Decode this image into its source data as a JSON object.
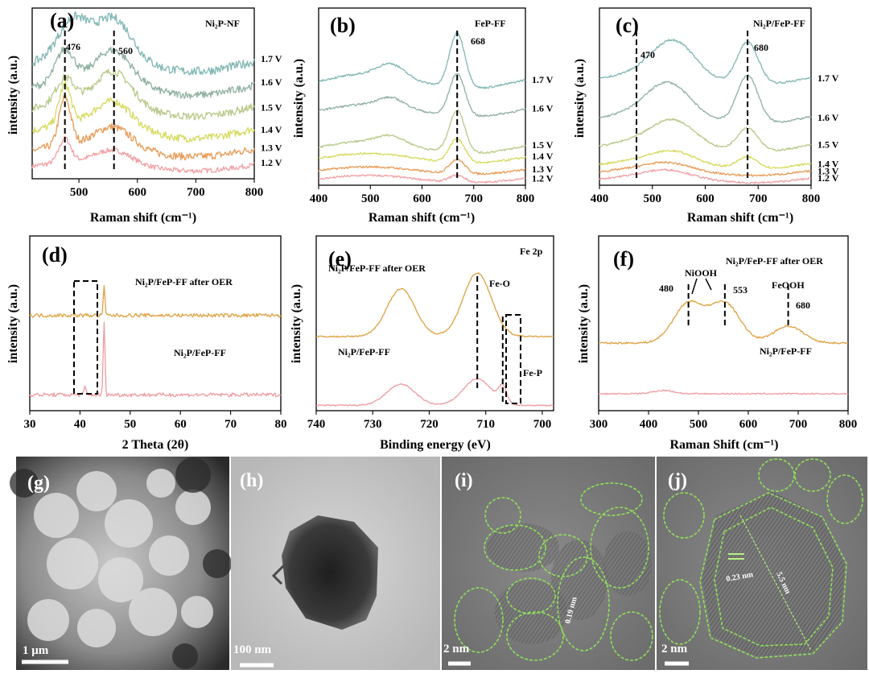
{
  "colors": {
    "v12": "#f2a0a4",
    "v13": "#e89a55",
    "v14": "#d6da5e",
    "v15": "#b8c98a",
    "v16": "#8fb0a0",
    "v17": "#7fb6b3",
    "after": "#e0a040",
    "before": "#f09aa0"
  },
  "chart_data": [
    {
      "panel": "(a)",
      "type": "line",
      "title": "Ni₂P-NF",
      "xlabel": "Raman shift (cm⁻¹)",
      "ylabel": "intensity (a.u.)",
      "xlim": [
        420,
        800
      ],
      "xticks": [
        500,
        600,
        700,
        800
      ],
      "peak_markers": [
        {
          "x": 476,
          "label": "476"
        },
        {
          "x": 560,
          "label": "560"
        }
      ],
      "series": [
        {
          "name": "1.2 V",
          "offset": 0,
          "amp": 0.3,
          "noise": 0.4,
          "peaks": [
            [
              476,
              1.5,
              10
            ],
            [
              560,
              0.8,
              30
            ]
          ]
        },
        {
          "name": "1.3 V",
          "offset": 1,
          "amp": 0.4,
          "noise": 0.6,
          "peaks": [
            [
              476,
              3.0,
              10
            ],
            [
              560,
              1.2,
              30
            ]
          ]
        },
        {
          "name": "1.4 V",
          "offset": 2.25,
          "amp": 0.5,
          "noise": 0.6,
          "peaks": [
            [
              476,
              2.5,
              10
            ],
            [
              560,
              1.5,
              30
            ]
          ]
        },
        {
          "name": "1.5 V",
          "offset": 3.65,
          "amp": 0.5,
          "noise": 0.6,
          "peaks": [
            [
              476,
              1.5,
              15
            ],
            [
              560,
              2.0,
              30
            ]
          ]
        },
        {
          "name": "1.6 V",
          "offset": 5.0,
          "amp": 0.5,
          "noise": 0.6,
          "peaks": [
            [
              476,
              2.0,
              15
            ],
            [
              560,
              2.0,
              30
            ]
          ]
        },
        {
          "name": "1.7 V",
          "offset": 6.5,
          "amp": 0.5,
          "noise": 0.7,
          "peaks": [
            [
              490,
              2.3,
              25
            ],
            [
              560,
              2.5,
              30
            ]
          ]
        }
      ]
    },
    {
      "panel": "(b)",
      "type": "line",
      "title": "FeP-FF",
      "xlabel": "Raman shift (cm⁻¹)",
      "ylabel": "intensity (a.u.)",
      "xlim": [
        400,
        800
      ],
      "xticks": [
        400,
        500,
        600,
        700,
        800
      ],
      "peak_markers": [
        {
          "x": 668,
          "label": "668"
        }
      ],
      "series": [
        {
          "name": "1.2 V",
          "offset": 0,
          "amp": 0.3,
          "noise": 0.2,
          "peaks": [
            [
              668,
              0.6,
              15
            ]
          ]
        },
        {
          "name": "1.3 V",
          "offset": 0.7,
          "amp": 0.3,
          "noise": 0.2,
          "peaks": [
            [
              668,
              1.2,
              15
            ]
          ]
        },
        {
          "name": "1.4 V",
          "offset": 1.7,
          "amp": 0.4,
          "noise": 0.2,
          "peaks": [
            [
              668,
              2.0,
              15
            ]
          ]
        },
        {
          "name": "1.5 V",
          "offset": 2.6,
          "amp": 0.5,
          "noise": 0.2,
          "peaks": [
            [
              668,
              3.5,
              15
            ],
            [
              540,
              0.6,
              25
            ]
          ]
        },
        {
          "name": "1.6 V",
          "offset": 5.6,
          "amp": 0.5,
          "noise": 0.2,
          "peaks": [
            [
              668,
              3.5,
              15
            ],
            [
              540,
              0.7,
              25
            ]
          ]
        },
        {
          "name": "1.7 V",
          "offset": 8.0,
          "amp": 0.6,
          "noise": 0.2,
          "peaks": [
            [
              668,
              4.5,
              15
            ],
            [
              540,
              1.0,
              25
            ]
          ]
        }
      ]
    },
    {
      "panel": "(c)",
      "type": "line",
      "title": "Ni₂P/FeP-FF",
      "xlabel": "Raman shift (cm⁻¹)",
      "ylabel": "intensity (a.u.)",
      "xlim": [
        400,
        800
      ],
      "xticks": [
        400,
        500,
        600,
        700,
        800
      ],
      "peak_markers": [
        {
          "x": 470,
          "label": "470"
        },
        {
          "x": 680,
          "label": "680"
        }
      ],
      "series": [
        {
          "name": "1.2 V",
          "offset": 0,
          "amp": 0.3,
          "noise": 0.2,
          "peaks": [
            [
              530,
              0.5,
              40
            ]
          ]
        },
        {
          "name": "1.3 V",
          "offset": 0.6,
          "amp": 0.3,
          "noise": 0.2,
          "peaks": [
            [
              530,
              0.5,
              40
            ]
          ]
        },
        {
          "name": "1.4 V",
          "offset": 1.2,
          "amp": 0.4,
          "noise": 0.2,
          "peaks": [
            [
              540,
              0.8,
              40
            ],
            [
              680,
              1.0,
              20
            ]
          ]
        },
        {
          "name": "1.5 V",
          "offset": 2.7,
          "amp": 0.5,
          "noise": 0.2,
          "peaks": [
            [
              540,
              1.8,
              40
            ],
            [
              680,
              2.0,
              20
            ]
          ]
        },
        {
          "name": "1.6 V",
          "offset": 5.0,
          "amp": 0.5,
          "noise": 0.2,
          "peaks": [
            [
              530,
              2.5,
              40
            ],
            [
              680,
              4.0,
              20
            ]
          ]
        },
        {
          "name": "1.7 V",
          "offset": 8.2,
          "amp": 0.5,
          "noise": 0.2,
          "peaks": [
            [
              540,
              2.8,
              40
            ],
            [
              680,
              3.5,
              20
            ]
          ]
        }
      ]
    },
    {
      "panel": "(d)",
      "type": "line",
      "xlabel": "2 Theta (2θ)",
      "ylabel": "intensity (a.u.)",
      "xlim": [
        30,
        80
      ],
      "xticks": [
        30,
        40,
        50,
        60,
        70,
        80
      ],
      "series": [
        {
          "name": "Ni₂P/FeP-FF",
          "offset": 0,
          "amp": 0.0,
          "noise": 0.6,
          "peaks": [
            [
              44.8,
              9.0,
              0.18
            ],
            [
              41.0,
              1.0,
              0.2
            ]
          ]
        },
        {
          "name": "Ni₂P/FeP-FF after OER",
          "offset": 10.0,
          "amp": 0.0,
          "noise": 0.6,
          "peaks": [
            [
              44.8,
              3.5,
              0.18
            ]
          ]
        }
      ]
    },
    {
      "panel": "(e)",
      "type": "line",
      "title": "Fe 2p",
      "xlabel": "Binding energy (eV)",
      "ylabel": "intensity (a.u.)",
      "xlim": [
        740,
        698
      ],
      "xticks": [
        740,
        730,
        720,
        710,
        700
      ],
      "peak_markers": [
        {
          "x": 711.5,
          "label": "Fe-O"
        },
        {
          "x": 707,
          "label": "Fe-P"
        }
      ],
      "series": [
        {
          "name": "Ni₂P/FeP-FF",
          "offset": 0,
          "amp": 0.0,
          "noise": 0.15,
          "peaks": [
            [
              725,
              2.0,
              2.5
            ],
            [
              711.5,
              2.5,
              2.5
            ],
            [
              707,
              1.5,
              0.7
            ]
          ]
        },
        {
          "name": "Ni₂P/FeP-FF after OER",
          "offset": 6.5,
          "amp": 0.0,
          "noise": 0.15,
          "peaks": [
            [
              725,
              4.5,
              2.5
            ],
            [
              711.5,
              6.0,
              2.5
            ]
          ]
        }
      ]
    },
    {
      "panel": "(f)",
      "type": "line",
      "xlabel": "Raman Shift (cm⁻¹)",
      "ylabel": "intensity (a.u.)",
      "xlim": [
        300,
        800
      ],
      "xticks": [
        300,
        400,
        500,
        600,
        700,
        800
      ],
      "peak_markers": [
        {
          "x": 480,
          "label": "480"
        },
        {
          "x": 553,
          "label": "553"
        },
        {
          "x": 680,
          "label": "680"
        }
      ],
      "series": [
        {
          "name": "Ni₂P/FeP-FF",
          "offset": 0,
          "amp": 0.0,
          "noise": 0.15,
          "peaks": [
            [
              430,
              0.3,
              20
            ]
          ]
        },
        {
          "name": "Ni₂P/FeP-FF after OER",
          "offset": 4.5,
          "amp": 0.0,
          "noise": 0.2,
          "peaks": [
            [
              480,
              3.5,
              30
            ],
            [
              553,
              3.5,
              30
            ],
            [
              680,
              1.5,
              30
            ]
          ]
        }
      ]
    }
  ],
  "annotations": {
    "a": {
      "p476": "476",
      "p560": "560"
    },
    "b": {
      "p668": "668"
    },
    "c": {
      "p470": "470",
      "p680": "680"
    },
    "e": {
      "feo": "Fe-O",
      "fep": "Fe-P",
      "after": "Ni₂P/FeP-FF after OER",
      "before": "Ni₂P/FeP-FF"
    },
    "d": {
      "after": "Ni₂P/FeP-FF after OER",
      "before": "Ni₂P/FeP-FF"
    },
    "f": {
      "after": "Ni₂P/FeP-FF after OER",
      "before": "Ni₂P/FeP-FF",
      "niooh": "NiOOH",
      "feooh": "FeOOH",
      "p480": "480",
      "p553": "553",
      "p680": "680"
    }
  },
  "images": [
    {
      "letter": "(g)",
      "scale": "1 μm"
    },
    {
      "letter": "(h)",
      "scale": "100 nm"
    },
    {
      "letter": "(i)",
      "scale": "2 nm",
      "fringe": "0.19 nm"
    },
    {
      "letter": "(j)",
      "scale": "2 nm",
      "fringe": "0.23 nm",
      "diameter": "5.5 nm"
    }
  ]
}
